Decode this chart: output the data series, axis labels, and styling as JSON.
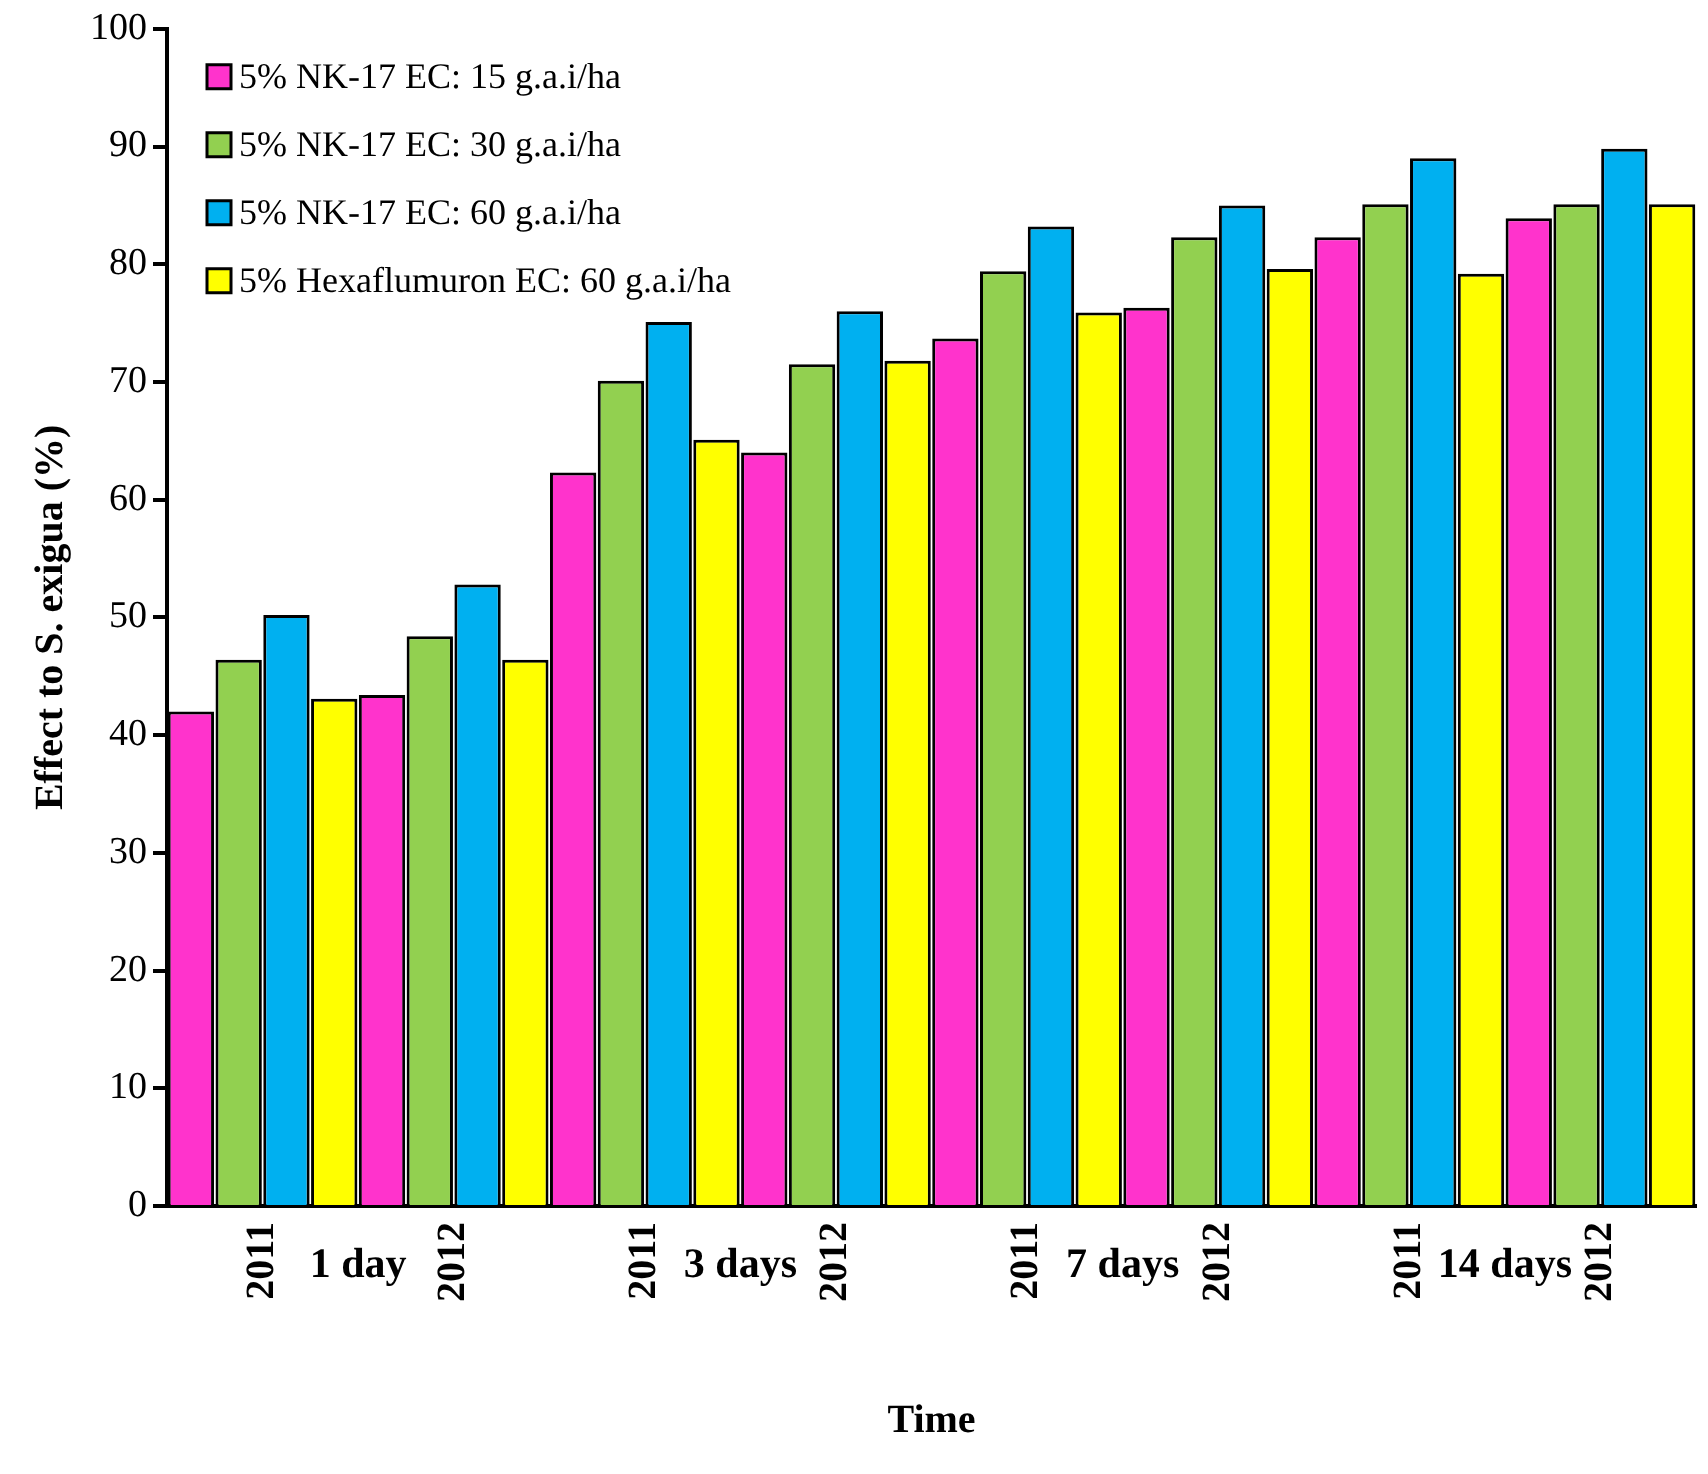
{
  "chart_data": {
    "type": "bar",
    "xlabel": "Time",
    "ylabel": "Effect to S. exigua (%)",
    "categories": [
      "2011",
      "2012",
      "2011",
      "2012",
      "2011",
      "2012",
      "2011",
      "2012"
    ],
    "series": [
      {
        "name": "5% NK-17 EC: 15 g.a.i/ha",
        "color": "#ff33cc",
        "values": [
          42.0,
          43.4,
          62.3,
          64.0,
          73.7,
          76.3,
          82.3,
          83.9
        ]
      },
      {
        "name": "5% NK-17 EC: 30 g.a.i/ha",
        "color": "#92d050",
        "values": [
          46.4,
          48.4,
          70.1,
          71.5,
          79.4,
          82.3,
          85.1,
          85.1
        ]
      },
      {
        "name": "5% NK-17 EC: 60 g.a.i/ha",
        "color": "#00b0f0",
        "values": [
          50.2,
          52.8,
          75.1,
          76.0,
          83.2,
          85.0,
          89.0,
          89.8
        ]
      },
      {
        "name": "5% Hexaflumuron EC: 60 g.a.i/ha",
        "color": "#ffff00",
        "values": [
          43.1,
          46.4,
          65.1,
          71.8,
          75.9,
          79.6,
          79.2,
          85.1
        ]
      }
    ],
    "annotations": [
      "1 day",
      "3 days",
      "7 days",
      "14 days"
    ],
    "ylim": [
      0,
      100
    ],
    "yticks": [
      0,
      10,
      20,
      30,
      40,
      50,
      60,
      70,
      80,
      90,
      100
    ],
    "grid": false,
    "legend": "top left"
  }
}
